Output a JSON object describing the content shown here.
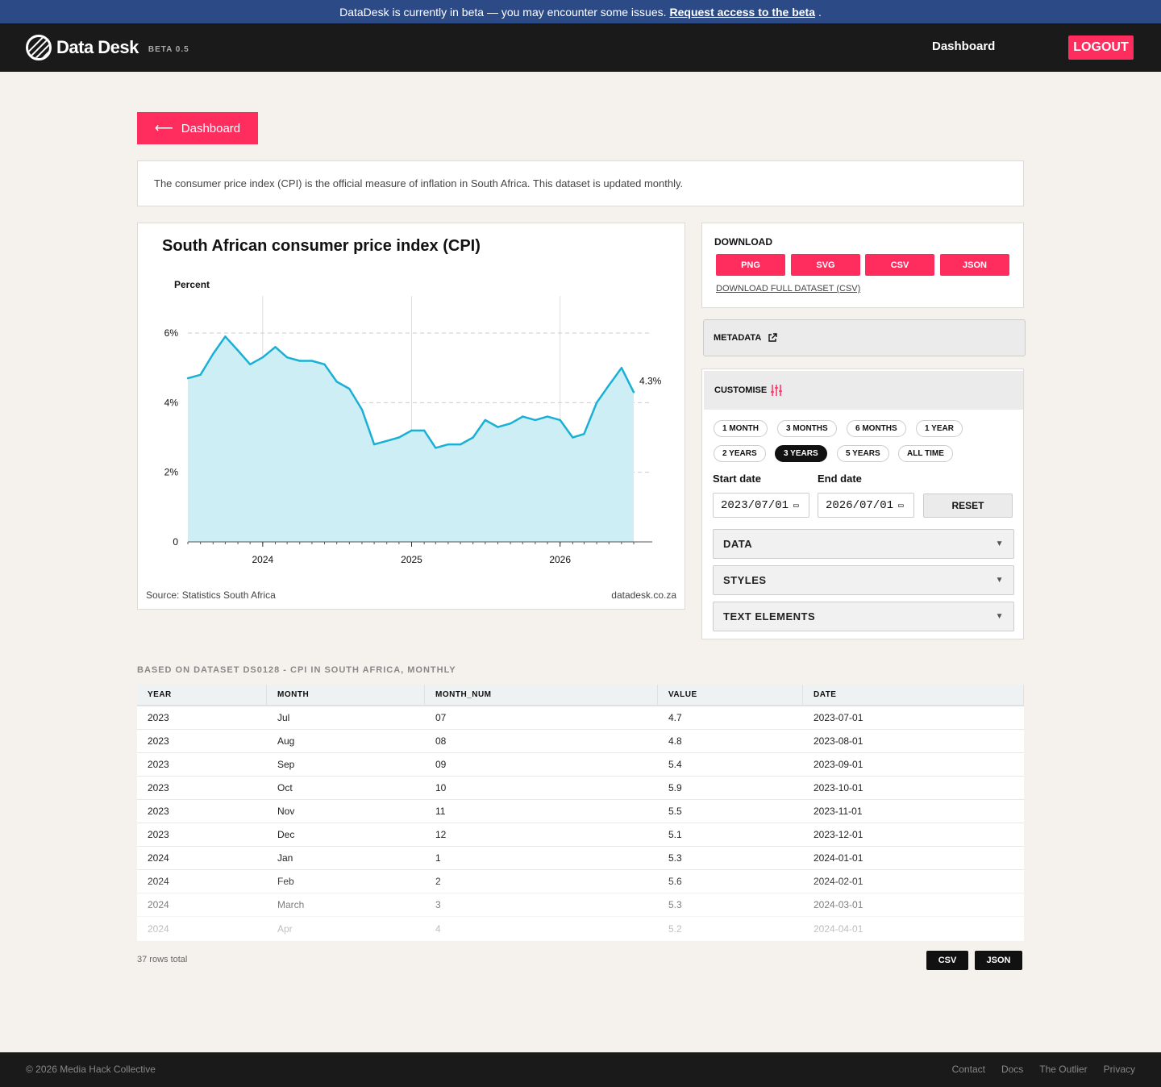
{
  "banner": {
    "text": "DataDesk is currently in beta — you may encounter some issues.",
    "link": "Request access to the beta",
    "end": "."
  },
  "nav": {
    "logo": "Data Desk",
    "beta": "BETA 0.5",
    "dashboard": "Dashboard",
    "logout": "LOGOUT"
  },
  "back_button": {
    "arrow": "⟵",
    "label": "Dashboard"
  },
  "description": "The consumer price index (CPI) is the official measure of inflation in South Africa. This dataset is updated monthly.",
  "chart_data": {
    "type": "area",
    "title": "South African consumer price index (CPI)",
    "ylabel": "Percent",
    "ylim": [
      0,
      6
    ],
    "yticks": [
      0,
      2,
      4,
      6
    ],
    "ytick_labels": [
      "0",
      "2%",
      "4%",
      "6%"
    ],
    "xlim": [
      "2023-07-01",
      "2026-07-01"
    ],
    "xticks": [
      "2024-01-01",
      "2025-01-01",
      "2026-01-01"
    ],
    "xtick_labels": [
      "2024",
      "2025",
      "2026"
    ],
    "dates": [
      "2023-07-01",
      "2023-08-01",
      "2023-09-01",
      "2023-10-01",
      "2023-11-01",
      "2023-12-01",
      "2024-01-01",
      "2024-02-01",
      "2024-03-01",
      "2024-04-01",
      "2024-05-01",
      "2024-06-01",
      "2024-07-01",
      "2024-08-01",
      "2024-09-01",
      "2024-10-01",
      "2024-11-01",
      "2024-12-01",
      "2025-01-01",
      "2025-02-01",
      "2025-03-01",
      "2025-04-01",
      "2025-05-01",
      "2025-06-01",
      "2025-07-01",
      "2025-08-01",
      "2025-09-01",
      "2025-10-01",
      "2025-11-01",
      "2025-12-01",
      "2026-01-01",
      "2026-02-01",
      "2026-03-01",
      "2026-04-01",
      "2026-05-01",
      "2026-06-01",
      "2026-07-01"
    ],
    "values": [
      4.7,
      4.8,
      5.4,
      5.9,
      5.5,
      5.1,
      5.3,
      5.6,
      5.3,
      5.2,
      5.2,
      5.1,
      4.6,
      4.4,
      3.8,
      2.8,
      2.9,
      3.0,
      3.2,
      3.2,
      2.7,
      2.8,
      2.8,
      3.0,
      3.5,
      3.3,
      3.4,
      3.6,
      3.5,
      3.6,
      3.5,
      3.0,
      3.1,
      4.0,
      4.5,
      5.0,
      4.3
    ],
    "end_label": "4.3%",
    "grid": true,
    "line_color": "#1ab0d6",
    "fill_color": "#cdeef5",
    "source": "Source: Statistics South Africa",
    "brand": "datadesk.co.za"
  },
  "download": {
    "title": "DOWNLOAD",
    "buttons": [
      "PNG",
      "SVG",
      "CSV",
      "JSON"
    ],
    "full_dataset": "DOWNLOAD FULL DATASET (CSV)"
  },
  "metadata": {
    "label": "METADATA",
    "icon": "external-link-icon"
  },
  "customise": {
    "title": "CUSTOMISE",
    "icon": "sliders-icon",
    "ranges": [
      "1 MONTH",
      "3 MONTHS",
      "6 MONTHS",
      "1 YEAR",
      "2 YEARS",
      "3 YEARS",
      "5 YEARS",
      "ALL TIME"
    ],
    "active_range": "3 YEARS",
    "start_label": "Start date",
    "end_label": "End date",
    "start_value": "2023/07/01",
    "end_value": "2026/07/01",
    "reset": "RESET",
    "sections": [
      "DATA",
      "STYLES",
      "TEXT ELEMENTS"
    ]
  },
  "table": {
    "caption": "BASED ON DATASET DS0128 - CPI IN SOUTH AFRICA, MONTHLY",
    "columns": [
      "YEAR",
      "MONTH",
      "MONTH_NUM",
      "VALUE",
      "DATE"
    ],
    "rows": [
      [
        "2023",
        "Jul",
        "07",
        "4.7",
        "2023-07-01"
      ],
      [
        "2023",
        "Aug",
        "08",
        "4.8",
        "2023-08-01"
      ],
      [
        "2023",
        "Sep",
        "09",
        "5.4",
        "2023-09-01"
      ],
      [
        "2023",
        "Oct",
        "10",
        "5.9",
        "2023-10-01"
      ],
      [
        "2023",
        "Nov",
        "11",
        "5.5",
        "2023-11-01"
      ],
      [
        "2023",
        "Dec",
        "12",
        "5.1",
        "2023-12-01"
      ],
      [
        "2024",
        "Jan",
        "1",
        "5.3",
        "2024-01-01"
      ],
      [
        "2024",
        "Feb",
        "2",
        "5.6",
        "2024-02-01"
      ],
      [
        "2024",
        "March",
        "3",
        "5.3",
        "2024-03-01"
      ],
      [
        "2024",
        "Apr",
        "4",
        "5.2",
        "2024-04-01"
      ]
    ],
    "rows_total": "37 rows total",
    "export": [
      "CSV",
      "JSON"
    ]
  },
  "footer": {
    "copyright": "© 2026 Media Hack Collective",
    "links": [
      "Contact",
      "Docs",
      "The Outlier",
      "Privacy"
    ]
  },
  "colors": {
    "accent": "#ff2d5e",
    "banner": "#2c4a86",
    "nav": "#1a1a1a",
    "background": "#f5f2ee"
  }
}
